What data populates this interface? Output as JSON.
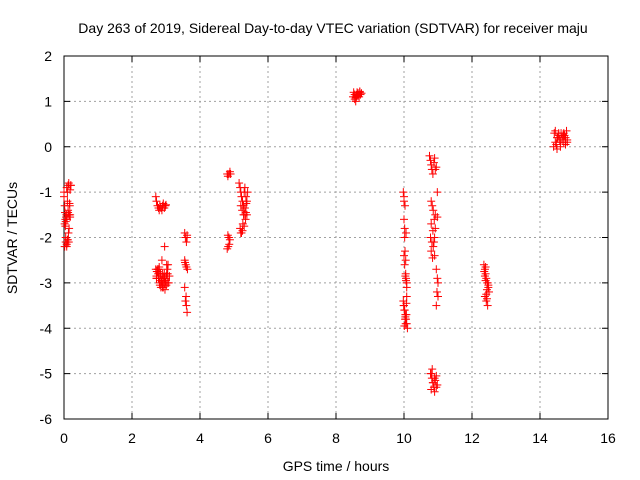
{
  "chart_data": {
    "type": "scatter",
    "title": "Day 263 of 2019, Sidereal Day-to-day VTEC variation (SDTVAR) for receiver maju",
    "xlabel": "GPS time / hours",
    "ylabel": "SDTVAR / TECUs",
    "xlim": [
      0,
      16
    ],
    "ylim": [
      -6,
      2
    ],
    "xticks": [
      0,
      2,
      4,
      6,
      8,
      10,
      12,
      14,
      16
    ],
    "yticks": [
      -6,
      -5,
      -4,
      -3,
      -2,
      -1,
      0,
      1,
      2
    ],
    "xtick_labels": [
      "0",
      "2",
      "4",
      "6",
      "8",
      "10",
      "12",
      "14",
      "16"
    ],
    "ytick_labels": [
      "-6",
      "-5",
      "-4",
      "-3",
      "-2",
      "-1",
      "0",
      "1",
      "2"
    ],
    "grid": true,
    "marker": "+",
    "marker_color": "#ff0000",
    "series": [
      {
        "x": [
          0.0,
          0.02,
          0.04,
          0.05,
          0.07,
          0.08,
          0.1,
          0.1,
          0.12,
          0.12,
          0.14,
          0.15,
          0.17,
          0.18,
          0.2,
          0.02,
          0.05,
          0.08,
          0.1,
          0.13,
          0.15,
          0.0,
          0.03,
          0.06,
          0.09,
          0.12,
          0.15,
          0.18,
          0.2,
          0.05,
          0.08,
          0.11,
          0.14,
          0.02,
          0.04,
          0.1,
          0.16,
          0.18,
          2.7,
          2.72,
          2.75,
          2.78,
          2.8,
          2.82,
          2.85,
          2.88,
          2.9,
          2.92,
          2.95,
          2.98,
          3.0,
          3.02,
          3.05,
          3.08,
          3.1,
          2.72,
          2.76,
          2.8,
          2.84,
          2.88,
          2.92,
          2.96,
          3.0,
          3.04,
          2.74,
          2.78,
          2.82,
          2.86,
          2.9,
          2.94,
          2.98,
          3.02,
          3.06,
          2.7,
          2.73,
          2.77,
          2.81,
          2.85,
          2.89,
          2.93,
          2.97,
          3.01,
          2.72,
          2.75,
          2.8,
          2.85,
          2.9,
          2.95,
          3.0,
          2.76,
          2.86,
          2.96,
          2.88,
          2.72,
          2.76,
          2.8,
          2.85,
          2.9,
          2.95,
          3.0,
          3.05,
          3.55,
          3.57,
          3.6,
          3.62,
          3.55,
          3.58,
          3.6,
          3.63,
          3.55,
          3.57,
          3.6,
          3.62,
          3.56,
          3.59,
          3.62,
          4.8,
          4.82,
          4.85,
          4.88,
          4.9,
          4.82,
          4.85,
          4.88,
          4.8,
          4.83,
          4.86,
          5.15,
          5.18,
          5.2,
          5.22,
          5.25,
          5.28,
          5.3,
          5.32,
          5.35,
          5.38,
          5.4,
          5.2,
          5.24,
          5.28,
          5.32,
          5.36,
          5.18,
          5.22,
          5.26,
          5.3,
          5.34,
          5.38,
          5.2,
          5.25,
          5.3,
          5.35,
          8.5,
          8.52,
          8.55,
          8.58,
          8.6,
          8.62,
          8.65,
          8.68,
          8.7,
          8.72,
          8.75,
          8.55,
          8.6,
          8.65,
          8.7,
          8.58,
          8.62,
          9.98,
          10.0,
          10.0,
          10.02,
          10.02,
          10.03,
          10.05,
          10.05,
          10.06,
          10.08,
          10.08,
          9.98,
          10.0,
          10.02,
          10.04,
          10.06,
          10.08,
          10.1,
          9.99,
          10.01,
          10.03,
          10.05,
          10.07,
          10.0,
          10.02,
          10.04,
          10.06,
          10.08,
          10.0,
          10.03,
          10.06,
          10.01,
          10.04,
          10.07,
          10.75,
          10.78,
          10.8,
          10.82,
          10.85,
          10.88,
          10.9,
          10.92,
          10.95,
          10.98,
          10.8,
          10.83,
          10.86,
          10.89,
          10.92,
          10.78,
          10.82,
          10.86,
          10.9,
          10.8,
          10.85,
          10.9,
          10.8,
          10.84,
          10.88,
          10.92,
          10.95,
          10.98,
          10.97,
          11.0,
          10.95,
          10.98,
          11.0,
          10.8,
          10.82,
          10.85,
          10.88,
          10.9,
          10.92,
          10.95,
          10.98,
          10.8,
          10.85,
          10.9,
          10.95,
          10.78,
          10.83,
          12.35,
          12.38,
          12.4,
          12.42,
          12.45,
          12.48,
          12.5,
          12.38,
          12.42,
          12.46,
          12.36,
          12.4,
          12.44,
          12.48,
          12.38,
          12.42,
          12.46,
          12.4,
          12.44,
          14.4,
          14.45,
          14.5,
          14.55,
          14.6,
          14.65,
          14.7,
          14.75,
          14.8,
          14.45,
          14.55,
          14.65,
          14.75,
          14.5,
          14.6,
          14.7,
          14.42,
          14.52,
          14.62,
          14.72,
          14.8,
          14.48,
          14.58,
          14.68,
          14.78
        ],
        "y": [
          -1.0,
          -1.3,
          -1.6,
          -1.65,
          -1.5,
          -0.9,
          -1.0,
          -2.1,
          -1.45,
          -0.85,
          -0.8,
          -1.5,
          -1.3,
          -0.95,
          -0.85,
          -2.2,
          -2.1,
          -2.15,
          -2.05,
          -1.9,
          -1.8,
          -1.1,
          -1.45,
          -1.55,
          -1.6,
          -1.4,
          -1.5,
          -1.55,
          -0.85,
          -2.0,
          -2.2,
          -2.05,
          -2.1,
          -1.7,
          -1.75,
          -1.2,
          -1.25,
          -1.5,
          -1.1,
          -1.2,
          -1.3,
          -1.35,
          -1.4,
          -1.3,
          -1.35,
          -1.4,
          -1.3,
          -1.25,
          -1.35,
          -1.3,
          -1.28,
          -2.6,
          -2.8,
          -3.0,
          -2.85,
          -2.9,
          -2.7,
          -2.65,
          -2.8,
          -3.0,
          -3.1,
          -2.9,
          -2.95,
          -2.7,
          -2.75,
          -2.9,
          -3.05,
          -2.95,
          -2.8,
          -2.85,
          -3.0,
          -2.8,
          -2.6,
          -2.7,
          -2.75,
          -2.8,
          -3.0,
          -3.1,
          -2.95,
          -2.9,
          -3.15,
          -3.05,
          -2.9,
          -2.75,
          -2.7,
          -2.85,
          -3.1,
          -3.0,
          -2.85,
          -2.75,
          -2.95,
          -2.2,
          -2.5,
          -2.85,
          -2.7,
          -2.8,
          -2.9,
          -3.05,
          -2.8,
          -2.9,
          -3.0,
          -1.9,
          -2.0,
          -2.1,
          -1.95,
          -2.5,
          -2.6,
          -2.65,
          -2.7,
          -3.1,
          -3.4,
          -3.5,
          -3.65,
          -2.55,
          -3.3,
          -2.0,
          -0.6,
          -0.65,
          -0.6,
          -0.55,
          -0.6,
          -1.95,
          -2.0,
          -2.05,
          -2.25,
          -2.2,
          -2.15,
          -0.8,
          -0.9,
          -1.0,
          -1.1,
          -1.2,
          -1.3,
          -1.0,
          -0.9,
          -1.1,
          -1.2,
          -1.0,
          -1.3,
          -1.4,
          -1.5,
          -1.35,
          -1.25,
          -1.8,
          -1.9,
          -1.7,
          -1.75,
          -1.6,
          -1.5,
          -1.9,
          -1.85,
          -1.5,
          -1.45,
          1.1,
          1.2,
          1.15,
          1.0,
          1.1,
          1.2,
          1.15,
          1.1,
          1.2,
          1.15,
          1.18,
          1.05,
          1.12,
          1.18,
          1.22,
          1.08,
          1.14,
          -1.0,
          -1.2,
          -1.6,
          -1.8,
          -2.0,
          -2.3,
          -2.5,
          -2.8,
          -2.9,
          -3.0,
          -3.3,
          -3.4,
          -3.5,
          -3.6,
          -3.7,
          -3.8,
          -3.9,
          -4.0,
          -3.5,
          -3.6,
          -3.8,
          -3.9,
          -3.7,
          -2.4,
          -2.6,
          -2.85,
          -2.95,
          -3.1,
          -1.1,
          -1.3,
          -1.9,
          -3.95,
          -3.75,
          -3.45,
          -0.2,
          -0.3,
          -0.4,
          -0.5,
          -0.6,
          -0.35,
          -0.25,
          -0.5,
          -0.45,
          -1.0,
          -1.2,
          -1.3,
          -1.4,
          -1.6,
          -1.5,
          -2.0,
          -2.1,
          -2.2,
          -2.4,
          -1.7,
          -1.85,
          -2.0,
          -2.3,
          -2.45,
          -2.1,
          -1.8,
          -2.7,
          -2.9,
          -3.2,
          -3.3,
          -3.5,
          -1.55,
          -3.0,
          -5.0,
          -5.1,
          -5.2,
          -5.3,
          -5.4,
          -5.15,
          -5.05,
          -5.25,
          -5.35,
          -5.2,
          -5.1,
          -5.3,
          -5.0,
          -4.9,
          -2.6,
          -2.7,
          -2.8,
          -2.9,
          -3.0,
          -3.1,
          -3.2,
          -3.3,
          -3.4,
          -3.5,
          -2.75,
          -2.95,
          -3.15,
          -3.05,
          -2.85,
          -3.25,
          -3.0,
          -2.65,
          -3.35,
          0.0,
          0.1,
          0.2,
          0.3,
          0.1,
          0.2,
          0.3,
          0.2,
          0.1,
          0.35,
          0.25,
          0.15,
          0.05,
          -0.05,
          0.0,
          0.1,
          0.3,
          0.2,
          0.3,
          0.25,
          0.15,
          0.05,
          0.15,
          0.25,
          0.35
        ]
      }
    ]
  }
}
